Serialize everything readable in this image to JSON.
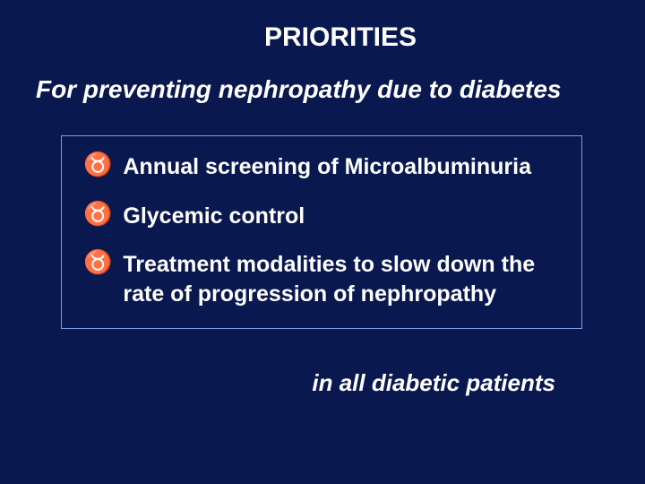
{
  "slide": {
    "title": "PRIORITIES",
    "subtitle": "For preventing nephropathy due to diabetes",
    "bullets": [
      {
        "icon": "♉",
        "text": "Annual screening of Microalbuminuria"
      },
      {
        "icon": "♉",
        "text": " Glycemic control"
      },
      {
        "icon": "♉",
        "text": "  Treatment modalities to slow down the rate of progression of nephropathy"
      }
    ],
    "footer": "in all diabetic patients",
    "style": {
      "background_color": "#0a1850",
      "text_color": "#ffffff",
      "border_color": "#8098e8",
      "title_fontsize": 30,
      "subtitle_fontsize": 28,
      "bullet_fontsize": 25,
      "footer_fontsize": 26,
      "bullet_icon_fontsize": 26
    }
  }
}
